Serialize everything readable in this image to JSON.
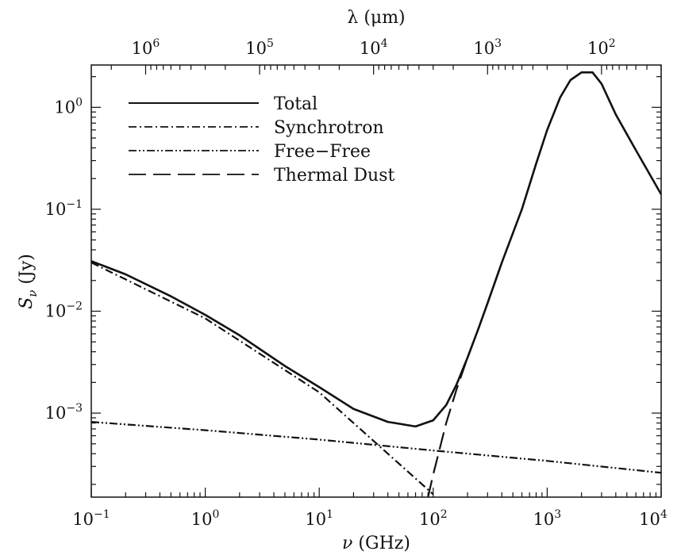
{
  "chart_data": {
    "type": "line",
    "title": "",
    "xlabel_prefix": "ν",
    "xlabel_unit": "(GHz)",
    "ylabel_main": "S",
    "ylabel_sub": "ν",
    "ylabel_unit": "(Jy)",
    "top_xlabel_prefix": "λ",
    "top_xlabel_unit": "(μm)",
    "xscale": "log",
    "yscale": "log",
    "xlim": [
      0.1,
      10000
    ],
    "ylim": [
      0.00015,
      2.6
    ],
    "legend_position": "top-left",
    "x_ticks": [
      {
        "value": 0.1,
        "base": "10",
        "exp": "−1"
      },
      {
        "value": 1,
        "base": "10",
        "exp": "0"
      },
      {
        "value": 10,
        "base": "10",
        "exp": "1"
      },
      {
        "value": 100,
        "base": "10",
        "exp": "2"
      },
      {
        "value": 1000,
        "base": "10",
        "exp": "3"
      },
      {
        "value": 10000,
        "base": "10",
        "exp": "4"
      }
    ],
    "y_ticks": [
      {
        "value": 1,
        "base": "10",
        "exp": "0"
      },
      {
        "value": 0.1,
        "base": "10",
        "exp": "−1"
      },
      {
        "value": 0.01,
        "base": "10",
        "exp": "−2"
      },
      {
        "value": 0.001,
        "base": "10",
        "exp": "−3"
      }
    ],
    "top_ticks": [
      {
        "value": 1000000,
        "base": "10",
        "exp": "6"
      },
      {
        "value": 100000,
        "base": "10",
        "exp": "5"
      },
      {
        "value": 10000,
        "base": "10",
        "exp": "4"
      },
      {
        "value": 1000,
        "base": "10",
        "exp": "3"
      },
      {
        "value": 100,
        "base": "10",
        "exp": "2"
      }
    ],
    "series": [
      {
        "name": "Total",
        "style": "solid",
        "x": [
          0.1,
          0.2,
          0.5,
          1,
          2,
          5,
          10,
          20,
          40,
          70,
          100,
          130,
          160,
          200,
          250,
          300,
          400,
          600,
          800,
          1000,
          1300,
          1600,
          2000,
          2500,
          3000,
          4000,
          6000,
          10000
        ],
        "y": [
          0.031,
          0.023,
          0.014,
          0.0092,
          0.0058,
          0.0029,
          0.0018,
          0.0011,
          0.00082,
          0.00074,
          0.00085,
          0.0012,
          0.0019,
          0.0035,
          0.0068,
          0.012,
          0.03,
          0.1,
          0.28,
          0.6,
          1.25,
          1.85,
          2.2,
          2.2,
          1.7,
          0.85,
          0.38,
          0.14
        ]
      },
      {
        "name": "Synchrotron",
        "style": "dash-dot",
        "x": [
          0.1,
          1,
          10,
          100
        ],
        "y": [
          0.03,
          0.0085,
          0.0016,
          0.00016
        ]
      },
      {
        "name": "Free−Free",
        "style": "dash-dot-dot",
        "x": [
          0.1,
          1,
          10,
          100,
          1000,
          10000
        ],
        "y": [
          0.00082,
          0.00068,
          0.00055,
          0.00043,
          0.00034,
          0.00026
        ]
      },
      {
        "name": "Thermal Dust",
        "style": "dashed",
        "x": [
          90,
          100,
          130,
          160,
          200,
          250,
          300,
          400
        ],
        "y": [
          0.00015,
          0.00025,
          0.0008,
          0.0017,
          0.0035,
          0.0068,
          0.012,
          0.03
        ]
      }
    ]
  }
}
